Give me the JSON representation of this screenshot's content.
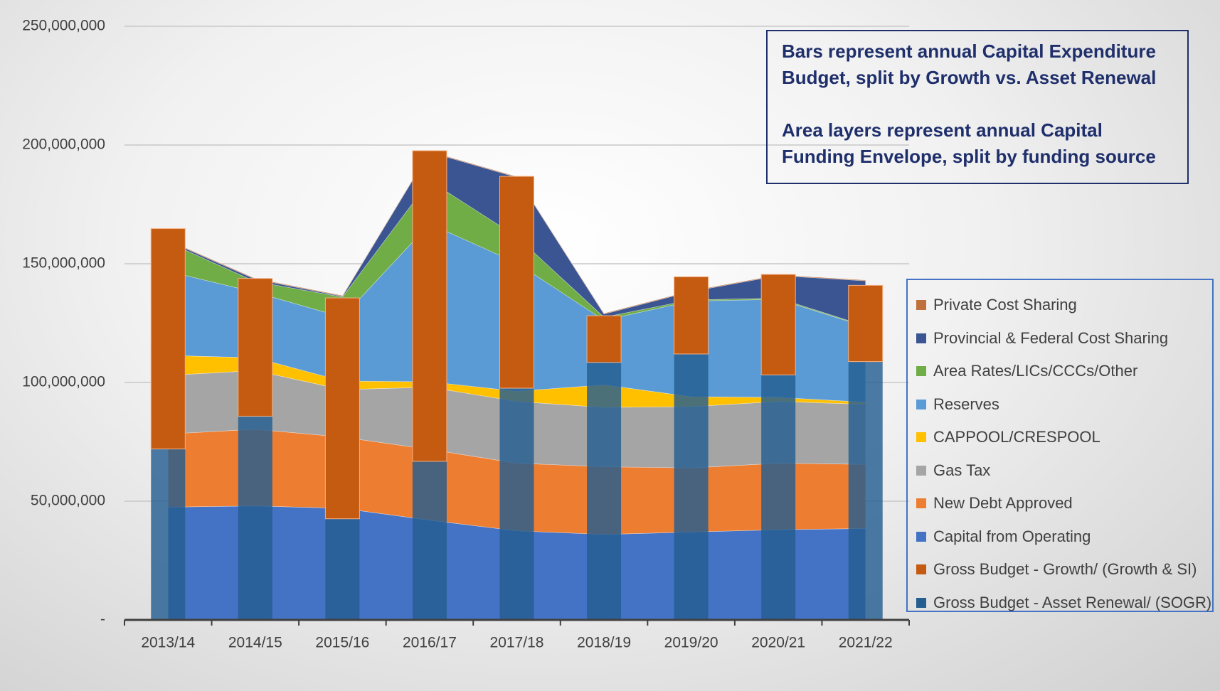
{
  "chart_data": {
    "type": "combo",
    "categories": [
      "2013/14",
      "2014/15",
      "2015/16",
      "2016/17",
      "2017/18",
      "2018/19",
      "2019/20",
      "2020/21",
      "2021/22"
    ],
    "ylim": [
      0,
      250000000
    ],
    "yticks": [
      {
        "value": 0,
        "label": "-"
      },
      {
        "value": 50000000,
        "label": "50,000,000"
      },
      {
        "value": 100000000,
        "label": "100,000,000"
      },
      {
        "value": 150000000,
        "label": "150,000,000"
      },
      {
        "value": 200000000,
        "label": "200,000,000"
      },
      {
        "value": 250000000,
        "label": "250,000,000"
      }
    ],
    "grid": true,
    "annotations": [
      "Bars represent annual Capital Expenditure Budget, split by Growth vs. Asset Renewal",
      "Area layers represent annual Capital Funding Envelope, split by funding source"
    ],
    "series": [
      {
        "name": "Gross Budget - Asset Renewal/ (SOGR)",
        "kind": "bar",
        "color": "#255e91",
        "values": [
          72000000,
          85800000,
          42600000,
          66800000,
          97600000,
          108500000,
          112000000,
          103200000,
          108800000
        ]
      },
      {
        "name": "Gross Budget - Growth/ (Growth & SI)",
        "kind": "bar",
        "color": "#c55a11",
        "values": [
          92800000,
          58000000,
          93000000,
          130800000,
          89200000,
          19600000,
          32500000,
          42300000,
          32100000
        ]
      },
      {
        "name": "Capital from Operating",
        "kind": "area",
        "color": "#4472c4",
        "values": [
          47500000,
          48000000,
          47000000,
          42000000,
          37500000,
          36000000,
          37000000,
          38000000,
          38500000
        ]
      },
      {
        "name": "New Debt Approved",
        "kind": "area",
        "color": "#ed7d31",
        "values": [
          30800000,
          32300000,
          30000000,
          29800000,
          28500000,
          28500000,
          27000000,
          28000000,
          27000000
        ]
      },
      {
        "name": "Gas Tax",
        "kind": "area",
        "color": "#a5a5a5",
        "values": [
          24700000,
          24700000,
          20000000,
          26200000,
          26000000,
          25000000,
          25800000,
          26000000,
          25300000
        ]
      },
      {
        "name": "CAPPOOL/CRESPOOL",
        "kind": "area",
        "color": "#ffc000",
        "values": [
          8400000,
          5400000,
          3600000,
          2300000,
          4300000,
          9500000,
          4200000,
          1700000,
          900000
        ]
      },
      {
        "name": "Reserves",
        "kind": "area",
        "color": "#5b9bd5",
        "values": [
          35400000,
          27600000,
          26900000,
          66500000,
          54000000,
          27200000,
          40300000,
          41300000,
          31800000
        ]
      },
      {
        "name": "Area Rates/LICs/CCCs/Other",
        "kind": "area",
        "color": "#70ad47",
        "values": [
          12200000,
          4500000,
          8500000,
          18200000,
          11100000,
          1300000,
          500000,
          500000,
          300000
        ]
      },
      {
        "name": "Provincial & Federal Cost Sharing",
        "kind": "area",
        "color": "#3b5592",
        "values": [
          600000,
          1000000,
          300000,
          12000000,
          25000000,
          1300000,
          3500000,
          9500000,
          19000000
        ]
      },
      {
        "name": "Private Cost Sharing",
        "kind": "area",
        "color": "#c0703c",
        "values": [
          300000,
          300000,
          300000,
          300000,
          300000,
          300000,
          300000,
          300000,
          300000
        ]
      }
    ]
  }
}
